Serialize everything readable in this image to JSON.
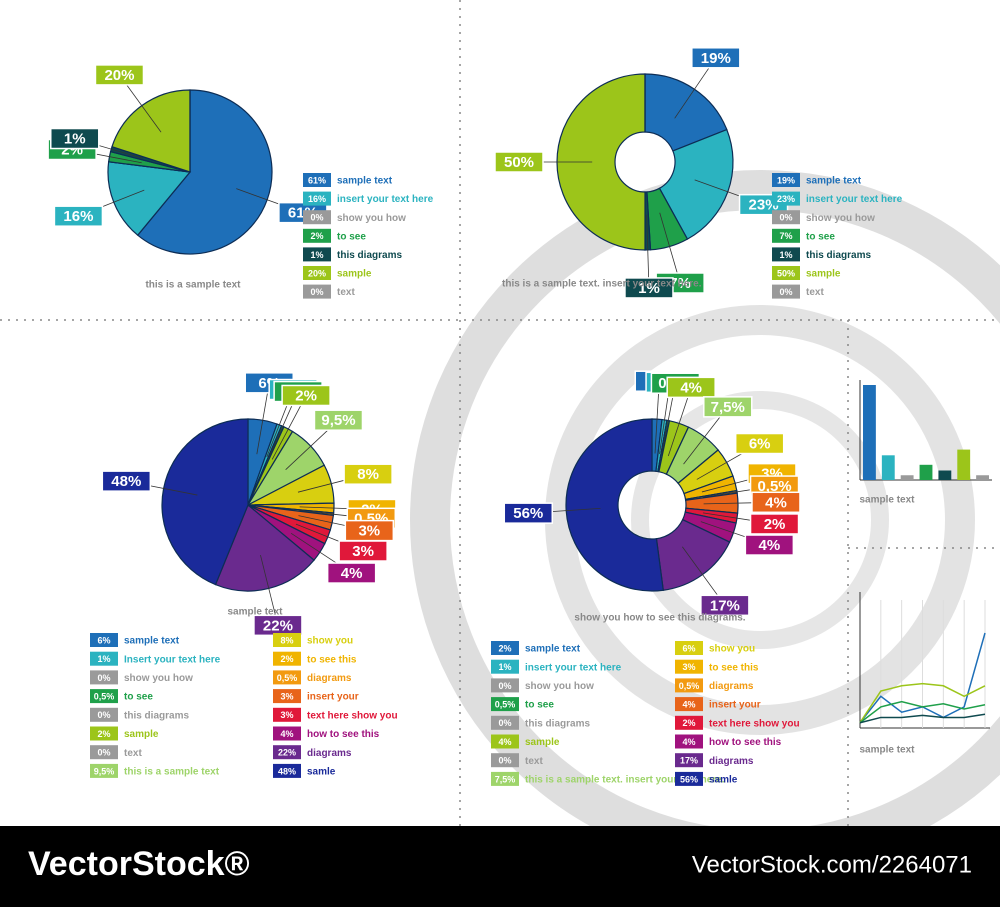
{
  "chart_data": [
    {
      "type": "pie",
      "caption": "this is a sample text",
      "labels": [
        "sample text",
        "insert your text here",
        "show you how",
        "to see",
        "this diagrams",
        "sample",
        "text"
      ],
      "values": [
        61,
        16,
        0,
        2,
        1,
        20,
        0
      ],
      "value_labels": [
        "61%",
        "16%",
        "0%",
        "2%",
        "1%",
        "20%",
        "0%"
      ],
      "colors": [
        "#1e6fb8",
        "#2bb3c0",
        "#9a9a9a",
        "#1fa04a",
        "#0f4a4f",
        "#9cc51a",
        "#9a9a9a"
      ]
    },
    {
      "type": "donut",
      "caption": "this is a sample text. insert your text here.",
      "labels": [
        "sample text",
        "insert your text here",
        "show you how",
        "to see",
        "this diagrams",
        "sample",
        "text"
      ],
      "values": [
        19,
        23,
        0,
        7,
        1,
        50,
        0
      ],
      "value_labels": [
        "19%",
        "23%",
        "0%",
        "7%",
        "1%",
        "50%",
        "0%"
      ],
      "colors": [
        "#1e6fb8",
        "#2bb3c0",
        "#9a9a9a",
        "#1fa04a",
        "#0f4a4f",
        "#9cc51a",
        "#9a9a9a"
      ]
    },
    {
      "type": "pie",
      "caption": "sample text",
      "labels": [
        "sample text",
        "Insert your text here",
        "show you how",
        "to see",
        "this diagrams",
        "sample",
        "text",
        "this is a sample text",
        "show you",
        "to see this",
        "diagrams",
        "insert your",
        "text here show you",
        "how to see this",
        "diagrams",
        "samle"
      ],
      "values": [
        6,
        1,
        0,
        0.5,
        0,
        2,
        0,
        9.5,
        8,
        2,
        0.5,
        3,
        3,
        4,
        22,
        48
      ],
      "value_labels": [
        "6%",
        "1%",
        "0%",
        "0,5%",
        "0%",
        "2%",
        "0%",
        "9,5%",
        "8%",
        "2%",
        "0,5%",
        "3%",
        "3%",
        "4%",
        "22%",
        "48%"
      ],
      "colors": [
        "#1e6fb8",
        "#2bb3c0",
        "#9a9a9a",
        "#1fa04a",
        "#9a9a9a",
        "#9cc51a",
        "#9a9a9a",
        "#9ed46a",
        "#d8cf10",
        "#f0b400",
        "#f29a10",
        "#e8641a",
        "#e0183a",
        "#a0127e",
        "#6a2a8e",
        "#1a2a9a"
      ]
    },
    {
      "type": "donut",
      "caption": "show you how to see this diagrams.",
      "labels": [
        "sample text",
        "insert your text here",
        "show you how",
        "to see",
        "this diagrams",
        "sample",
        "text",
        "this is a sample text. insert your text here.",
        "show you",
        "to see this",
        "diagrams",
        "insert your",
        "text here show you",
        "how to see this",
        "diagrams",
        "samle"
      ],
      "values": [
        2,
        1,
        0,
        0.5,
        0,
        4,
        0,
        7.5,
        6,
        3,
        0.5,
        4,
        2,
        4,
        17,
        56
      ],
      "value_labels": [
        "2%",
        "1%",
        "0%",
        "0,5%",
        "0%",
        "4%",
        "0%",
        "7,5%",
        "6%",
        "3%",
        "0,5%",
        "4%",
        "2%",
        "4%",
        "17%",
        "56%"
      ],
      "colors": [
        "#1e6fb8",
        "#2bb3c0",
        "#9a9a9a",
        "#1fa04a",
        "#9a9a9a",
        "#9cc51a",
        "#9a9a9a",
        "#9ed46a",
        "#d8cf10",
        "#f0b400",
        "#f29a10",
        "#e8641a",
        "#e0183a",
        "#a0127e",
        "#6a2a8e",
        "#1a2a9a"
      ]
    },
    {
      "type": "bar",
      "caption": "sample text",
      "values": [
        10,
        2.6,
        0.5,
        1.6,
        1,
        3.2,
        0.5
      ],
      "colors": [
        "#1e6fb8",
        "#2bb3c0",
        "#9a9a9a",
        "#1fa04a",
        "#0f4a4f",
        "#9cc51a",
        "#9a9a9a"
      ]
    },
    {
      "type": "line",
      "caption": "sample text",
      "series": [
        {
          "color": "#1e6fb8",
          "values": [
            0.5,
            3,
            1.5,
            2,
            1,
            2,
            9
          ]
        },
        {
          "color": "#9cc51a",
          "values": [
            0.5,
            3.5,
            4,
            4.2,
            4,
            3,
            4
          ]
        },
        {
          "color": "#1fa04a",
          "values": [
            0.5,
            2,
            2.5,
            2,
            2.3,
            1.8,
            2.2
          ]
        },
        {
          "color": "#0f4a4f",
          "values": [
            0.5,
            1,
            1,
            1.2,
            1,
            1,
            1.3
          ]
        }
      ]
    }
  ],
  "footer": {
    "brand": "VectorStock®",
    "url": "VectorStock.com/2264071"
  }
}
